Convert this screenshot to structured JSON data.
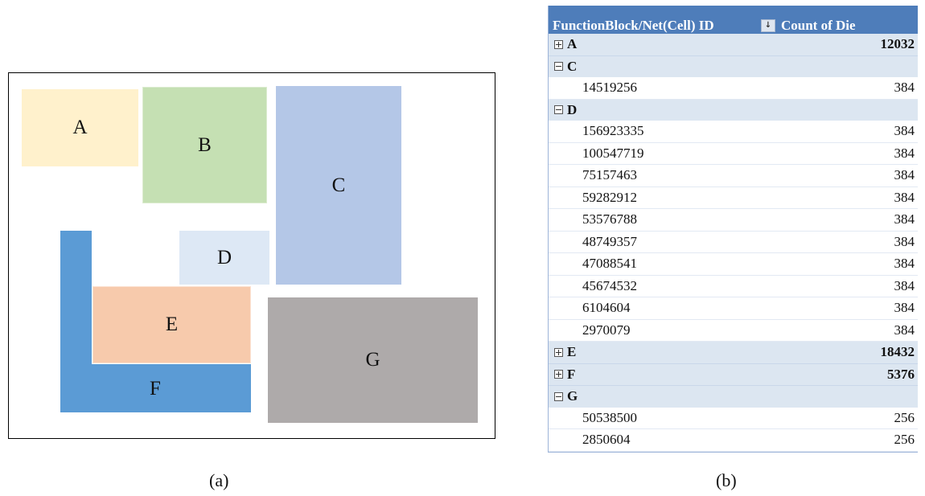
{
  "floorplan": {
    "blocks": [
      {
        "label": "A",
        "color": "#fff1cc"
      },
      {
        "label": "B",
        "color": "#c5e0b3"
      },
      {
        "label": "C",
        "color": "#b4c7e7"
      },
      {
        "label": "D",
        "color": "#dde8f5"
      },
      {
        "label": "E",
        "color": "#f7caac"
      },
      {
        "label": "F",
        "color": "#5b9bd5"
      },
      {
        "label": "G",
        "color": "#aeaaaa"
      }
    ]
  },
  "captions": {
    "a": "(a)",
    "b": "(b)"
  },
  "pivot": {
    "header_col1": "FunctionBlock/Net(Cell) ID",
    "header_col2": "Count of Die",
    "header_color": "#4e7dba",
    "rows": [
      {
        "type": "group",
        "expanded": false,
        "name": "A",
        "count": "12032"
      },
      {
        "type": "group",
        "expanded": true,
        "name": "C",
        "count": ""
      },
      {
        "type": "item",
        "name": "14519256",
        "count": "384"
      },
      {
        "type": "group",
        "expanded": true,
        "name": "D",
        "count": ""
      },
      {
        "type": "item",
        "name": "156923335",
        "count": "384"
      },
      {
        "type": "item",
        "name": "100547719",
        "count": "384"
      },
      {
        "type": "item",
        "name": "75157463",
        "count": "384"
      },
      {
        "type": "item",
        "name": "59282912",
        "count": "384"
      },
      {
        "type": "item",
        "name": "53576788",
        "count": "384"
      },
      {
        "type": "item",
        "name": "48749357",
        "count": "384"
      },
      {
        "type": "item",
        "name": "47088541",
        "count": "384"
      },
      {
        "type": "item",
        "name": "45674532",
        "count": "384"
      },
      {
        "type": "item",
        "name": "6104604",
        "count": "384"
      },
      {
        "type": "item",
        "name": "2970079",
        "count": "384"
      },
      {
        "type": "group",
        "expanded": false,
        "name": "E",
        "count": "18432"
      },
      {
        "type": "group",
        "expanded": false,
        "name": "F",
        "count": "5376"
      },
      {
        "type": "group",
        "expanded": true,
        "name": "G",
        "count": ""
      },
      {
        "type": "item",
        "name": "50538500",
        "count": "256"
      },
      {
        "type": "item",
        "name": "2850604",
        "count": "256"
      }
    ]
  }
}
